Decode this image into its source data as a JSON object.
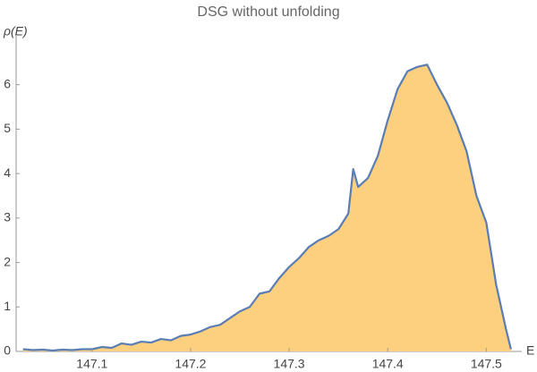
{
  "chart_data": {
    "type": "area",
    "title": "DSG without unfolding",
    "y_label": "ρ(E)",
    "x_label": "E",
    "x": [
      147.03,
      147.04,
      147.05,
      147.06,
      147.07,
      147.08,
      147.09,
      147.1,
      147.11,
      147.12,
      147.13,
      147.14,
      147.15,
      147.16,
      147.17,
      147.18,
      147.19,
      147.2,
      147.21,
      147.22,
      147.23,
      147.24,
      147.25,
      147.26,
      147.27,
      147.28,
      147.29,
      147.3,
      147.31,
      147.32,
      147.33,
      147.34,
      147.35,
      147.36,
      147.365,
      147.37,
      147.38,
      147.39,
      147.4,
      147.41,
      147.42,
      147.43,
      147.44,
      147.45,
      147.46,
      147.47,
      147.48,
      147.49,
      147.5,
      147.51,
      147.52,
      147.525
    ],
    "series": [
      {
        "name": "ρ(E)",
        "color": "#5a7db3",
        "fill": "#fcd07e",
        "values": [
          0.05,
          0.03,
          0.04,
          0.02,
          0.04,
          0.03,
          0.05,
          0.05,
          0.1,
          0.08,
          0.18,
          0.15,
          0.22,
          0.2,
          0.28,
          0.25,
          0.35,
          0.38,
          0.45,
          0.55,
          0.6,
          0.75,
          0.9,
          1.0,
          1.3,
          1.35,
          1.65,
          1.9,
          2.1,
          2.35,
          2.5,
          2.6,
          2.75,
          3.1,
          4.1,
          3.7,
          3.9,
          4.4,
          5.2,
          5.9,
          6.3,
          6.4,
          6.45,
          6.0,
          5.6,
          5.1,
          4.5,
          3.5,
          2.9,
          1.5,
          0.5,
          0.05
        ]
      }
    ],
    "xlim": [
      147.023,
      147.536
    ],
    "ylim": [
      0,
      7.1
    ],
    "xticks": [
      147.1,
      147.2,
      147.3,
      147.4,
      147.5
    ],
    "yticks": [
      0,
      1,
      2,
      3,
      4,
      5,
      6
    ]
  }
}
